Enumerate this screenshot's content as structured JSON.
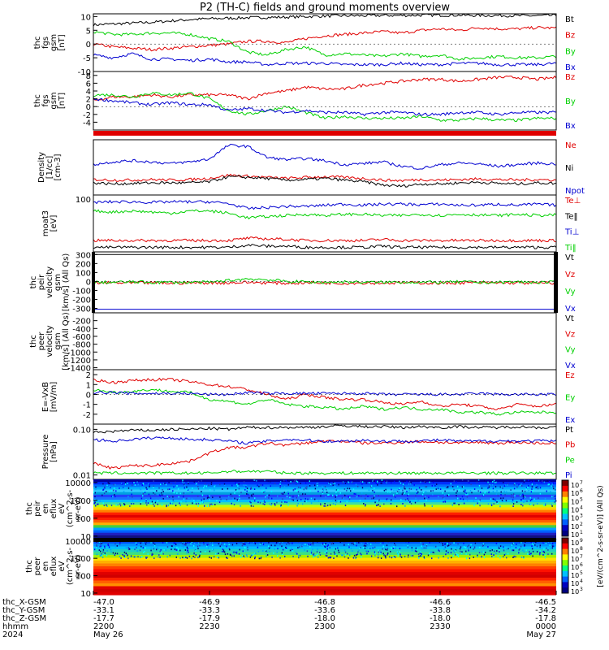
{
  "title": "P2 (TH-C) fields and ground moments overview",
  "colors": {
    "black": "#000000",
    "red": "#e00000",
    "green": "#00d000",
    "blue": "#0000d0"
  },
  "chart_data": [
    {
      "type": "line",
      "ylabel": [
        "thc",
        "fgs",
        "gsm",
        "[nT]"
      ],
      "ylim": [
        -10,
        11
      ],
      "yticks": [
        "10",
        "5",
        "0",
        "-5",
        "-10"
      ],
      "ytick_values": [
        10,
        5,
        0,
        -5,
        -10
      ],
      "legend_placement": "right",
      "series": [
        {
          "name": "Bt",
          "color": "black",
          "values": [
            7,
            7.3,
            7.6,
            7.9,
            8.4,
            8.9,
            9.2,
            9.4,
            9.6,
            9.7,
            9.8,
            10,
            10.2,
            10.3,
            10.3,
            10.4,
            10.4,
            10.5,
            10.5,
            10.5,
            10.4,
            10.4,
            10.3,
            10.3,
            10.4
          ]
        },
        {
          "name": "Bz",
          "color": "red",
          "values": [
            0,
            -1,
            -1.5,
            -2,
            -1.5,
            -1,
            -0.5,
            0,
            1,
            1,
            0.5,
            2,
            3,
            3.5,
            4,
            4.5,
            4,
            5,
            5.5,
            5,
            6,
            5.5,
            5.5,
            6,
            5.8
          ]
        },
        {
          "name": "By",
          "color": "green",
          "values": [
            4.5,
            3.5,
            3.5,
            4,
            4,
            3.5,
            2,
            1,
            -3,
            -4,
            -2,
            -1,
            -4,
            -3.5,
            -4,
            -4.5,
            -3.5,
            -4.5,
            -4,
            -5.5,
            -5,
            -4.5,
            -5,
            -5,
            -4.5
          ]
        },
        {
          "name": "Bx",
          "color": "blue",
          "values": [
            -4,
            -5,
            -3.5,
            -5.5,
            -5.5,
            -6,
            -5.5,
            -6.5,
            -6.5,
            -7.5,
            -7,
            -7,
            -7,
            -7.5,
            -7.5,
            -7.5,
            -7,
            -7.5,
            -7.5,
            -7,
            -7,
            -7.5,
            -7.5,
            -7.5,
            -7
          ]
        }
      ]
    },
    {
      "type": "line",
      "ylabel": [
        "thc",
        "fgs",
        "gsm",
        "[nT]"
      ],
      "ylim": [
        -6,
        9
      ],
      "yticks": [
        "8",
        "6",
        "4",
        "2",
        "0",
        "-2",
        "-4"
      ],
      "ytick_values": [
        8,
        6,
        4,
        2,
        0,
        -2,
        -4
      ],
      "legend_placement": "right",
      "series": [
        {
          "name": "Bz",
          "color": "red",
          "values": [
            1.5,
            2.5,
            2.5,
            3,
            2.5,
            3,
            3,
            3,
            2,
            3.5,
            4,
            5,
            4.5,
            4.5,
            5.5,
            6,
            6.5,
            7,
            7,
            6.5,
            7,
            7.5,
            7.5,
            7,
            7.5
          ]
        },
        {
          "name": "By",
          "color": "green",
          "values": [
            3,
            3,
            2.5,
            3.5,
            3,
            3.5,
            2,
            -1,
            -2,
            -1,
            0,
            -1.5,
            -3,
            -2.5,
            -3,
            -3,
            -3,
            -2.5,
            -3.5,
            -3.5,
            -3,
            -3.5,
            -3.5,
            -3,
            -3
          ]
        },
        {
          "name": "Bx",
          "color": "blue",
          "values": [
            2,
            1.5,
            1,
            0.5,
            1,
            0.5,
            0.5,
            -1,
            -0.5,
            -1,
            -1.5,
            -1,
            -1.5,
            -1.5,
            -2,
            -1.5,
            -1.5,
            -2,
            -2,
            -1.5,
            -1.5,
            -2,
            -1.5,
            -1.5,
            -1.5
          ]
        }
      ]
    },
    {
      "type": "line",
      "ylabel": [
        "Density",
        "[1/cc]",
        "[cm-3]"
      ],
      "ylim": [
        0,
        1
      ],
      "yticks": [],
      "legend_placement": "right",
      "series": [
        {
          "name": "Ne",
          "color": "red",
          "values": [
            0.28,
            0.27,
            0.27,
            0.28,
            0.27,
            0.28,
            0.3,
            0.36,
            0.34,
            0.32,
            0.3,
            0.32,
            0.33,
            0.32,
            0.3,
            0.27,
            0.26,
            0.28,
            0.27,
            0.28,
            0.29,
            0.28,
            0.27,
            0.28,
            0.27
          ]
        },
        {
          "name": "Ni",
          "color": "black",
          "values": [
            0.22,
            0.2,
            0.21,
            0.22,
            0.22,
            0.22,
            0.24,
            0.33,
            0.32,
            0.3,
            0.27,
            0.28,
            0.3,
            0.27,
            0.24,
            0.18,
            0.16,
            0.2,
            0.2,
            0.22,
            0.23,
            0.21,
            0.2,
            0.22,
            0.21
          ]
        },
        {
          "name": "Npot",
          "color": "blue",
          "values": [
            0.55,
            0.6,
            0.62,
            0.6,
            0.57,
            0.6,
            0.65,
            0.9,
            0.88,
            0.68,
            0.64,
            0.66,
            0.62,
            0.55,
            0.57,
            0.6,
            0.52,
            0.48,
            0.55,
            0.58,
            0.56,
            0.52,
            0.55,
            0.58,
            0.56
          ]
        }
      ]
    },
    {
      "type": "line",
      "ylabel": [
        "moat3",
        "[eV]"
      ],
      "ylim": [
        0,
        1
      ],
      "yticks": [
        "100"
      ],
      "legend_placement": "right",
      "series": [
        {
          "name": "Te⊥",
          "color": "red",
          "values": [
            0.2,
            0.2,
            0.2,
            0.2,
            0.2,
            0.2,
            0.2,
            0.2,
            0.24,
            0.23,
            0.22,
            0.2,
            0.2,
            0.2,
            0.2,
            0.22,
            0.2,
            0.2,
            0.2,
            0.2,
            0.2,
            0.2,
            0.2,
            0.2,
            0.2
          ]
        },
        {
          "name": "Te‖",
          "color": "black",
          "values": [
            0.08,
            0.08,
            0.08,
            0.08,
            0.08,
            0.08,
            0.08,
            0.08,
            0.12,
            0.1,
            0.1,
            0.08,
            0.08,
            0.08,
            0.08,
            0.1,
            0.08,
            0.08,
            0.08,
            0.08,
            0.08,
            0.08,
            0.08,
            0.08,
            0.08
          ]
        },
        {
          "name": "Ti⊥",
          "color": "blue",
          "values": [
            0.87,
            0.88,
            0.88,
            0.87,
            0.88,
            0.88,
            0.88,
            0.85,
            0.76,
            0.78,
            0.8,
            0.8,
            0.82,
            0.84,
            0.82,
            0.84,
            0.84,
            0.83,
            0.84,
            0.82,
            0.82,
            0.84,
            0.82,
            0.84,
            0.82
          ]
        },
        {
          "name": "Ti‖",
          "color": "green",
          "values": [
            0.72,
            0.7,
            0.72,
            0.7,
            0.68,
            0.72,
            0.72,
            0.68,
            0.6,
            0.62,
            0.64,
            0.66,
            0.64,
            0.66,
            0.66,
            0.64,
            0.64,
            0.66,
            0.64,
            0.66,
            0.65,
            0.64,
            0.66,
            0.64,
            0.65
          ]
        }
      ]
    },
    {
      "type": "line",
      "ylabel": [
        "thc",
        "peir",
        "velocity",
        "gsm",
        "[km/s] (All Qs)"
      ],
      "ylim": [
        -350,
        330
      ],
      "yticks": [
        "300",
        "200",
        "100",
        "0",
        "-100",
        "-200",
        "-300"
      ],
      "ytick_values": [
        300,
        200,
        100,
        0,
        -100,
        -200,
        -300
      ],
      "legend_placement": "right",
      "series": [
        {
          "name": "Vt",
          "color": "black",
          "values": [
            300,
            300,
            300,
            300,
            300,
            300,
            300,
            300,
            300,
            300,
            300,
            300,
            300,
            300,
            300,
            300,
            300,
            300,
            300,
            300,
            300,
            300,
            300,
            300,
            300
          ]
        },
        {
          "name": "Vz",
          "color": "red",
          "values": [
            -20,
            -15,
            -18,
            -15,
            -20,
            -15,
            -15,
            -15,
            -10,
            -15,
            -20,
            -15,
            -15,
            -20,
            -15,
            -18,
            -15,
            -15,
            -20,
            -15,
            -15,
            -18,
            -15,
            -20,
            -15
          ]
        },
        {
          "name": "Vy",
          "color": "green",
          "values": [
            -10,
            -10,
            -5,
            -10,
            -10,
            -10,
            -10,
            10,
            30,
            20,
            0,
            -5,
            -10,
            -5,
            -10,
            -10,
            -5,
            -10,
            -10,
            -5,
            -10,
            -10,
            -5,
            -10,
            -10
          ]
        },
        {
          "name": "Vx",
          "color": "blue",
          "values": [
            -310,
            -310,
            -310,
            -310,
            -310,
            -310,
            -310,
            -310,
            -310,
            -310,
            -310,
            -310,
            -310,
            -310,
            -310,
            -310,
            -310,
            -310,
            -310,
            -310,
            -310,
            -310,
            -310,
            -310,
            -310
          ]
        }
      ]
    },
    {
      "type": "line",
      "ylabel": [
        "thc",
        "peer",
        "velocity",
        "gsm",
        "[km/s] (All Qs)"
      ],
      "ylim": [
        -1450,
        0
      ],
      "yticks": [
        "-200",
        "-400",
        "-600",
        "-800",
        "-1000",
        "-1200",
        "-1400"
      ],
      "ytick_values": [
        -200,
        -400,
        -600,
        -800,
        -1000,
        -1200,
        -1400
      ],
      "legend_placement": "right",
      "series": [
        {
          "name": "Vt",
          "color": "black",
          "values": []
        },
        {
          "name": "Vz",
          "color": "red",
          "values": []
        },
        {
          "name": "Vy",
          "color": "green",
          "values": []
        },
        {
          "name": "Vx",
          "color": "blue",
          "values": []
        }
      ]
    },
    {
      "type": "line",
      "ylabel": [
        "E=-VxB",
        "[mV/m]"
      ],
      "ylim": [
        -3,
        2.5
      ],
      "yticks": [
        "2",
        "1",
        "0",
        "-1",
        "-2"
      ],
      "ytick_values": [
        2,
        1,
        0,
        -1,
        -2
      ],
      "legend_placement": "right",
      "series": [
        {
          "name": "Ez",
          "color": "red",
          "values": [
            1.5,
            1.2,
            1.4,
            1.5,
            1.5,
            1.3,
            1,
            0.8,
            0.5,
            0,
            -0.5,
            0,
            -0.3,
            -0.5,
            -0.5,
            -0.8,
            -1,
            -0.7,
            -1.2,
            -1,
            -1.2,
            -1.5,
            -1,
            -1.2,
            -1
          ]
        },
        {
          "name": "Ey",
          "color": "green",
          "values": [
            0.5,
            0.2,
            0.3,
            0.5,
            0.3,
            0.2,
            -0.5,
            -0.7,
            -1,
            -0.5,
            -1,
            -1.2,
            -1.3,
            -1.5,
            -1.2,
            -1.5,
            -1.3,
            -1.5,
            -1.5,
            -1.8,
            -1.8,
            -2,
            -1.8,
            -1.8,
            -1.8
          ]
        },
        {
          "name": "Ex",
          "color": "blue",
          "values": [
            0.2,
            0.2,
            0.1,
            0.1,
            0.1,
            0.1,
            0,
            0,
            0.2,
            0.1,
            0.1,
            0.1,
            0.1,
            0.1,
            0.1,
            0,
            0,
            0,
            0,
            0,
            0.1,
            0,
            0,
            0,
            0
          ]
        }
      ]
    },
    {
      "type": "line",
      "ylabel": [
        "Pressure",
        "[nPa]"
      ],
      "ylim": [
        0.008,
        0.13
      ],
      "yscale": "log",
      "yticks": [
        "0.10",
        "0.01"
      ],
      "ytick_values": [
        0.1,
        0.01
      ],
      "legend_placement": "right",
      "series": [
        {
          "name": "Pt",
          "color": "black",
          "values": [
            0.085,
            0.09,
            0.095,
            0.095,
            0.1,
            0.1,
            0.105,
            0.1,
            0.11,
            0.11,
            0.11,
            0.11,
            0.115,
            0.12,
            0.115,
            0.115,
            0.11,
            0.115,
            0.11,
            0.115,
            0.11,
            0.11,
            0.115,
            0.11,
            0.11
          ]
        },
        {
          "name": "Pb",
          "color": "red",
          "values": [
            0.018,
            0.014,
            0.016,
            0.016,
            0.018,
            0.02,
            0.03,
            0.04,
            0.04,
            0.05,
            0.045,
            0.05,
            0.055,
            0.055,
            0.05,
            0.05,
            0.052,
            0.054,
            0.052,
            0.05,
            0.052,
            0.05,
            0.052,
            0.05,
            0.05
          ]
        },
        {
          "name": "Pe",
          "color": "green",
          "values": [
            0.011,
            0.011,
            0.011,
            0.011,
            0.011,
            0.011,
            0.011,
            0.012,
            0.012,
            0.012,
            0.011,
            0.011,
            0.011,
            0.011,
            0.011,
            0.011,
            0.011,
            0.011,
            0.011,
            0.011,
            0.011,
            0.011,
            0.011,
            0.011,
            0.011
          ]
        },
        {
          "name": "Pi",
          "color": "blue",
          "values": [
            0.06,
            0.055,
            0.06,
            0.065,
            0.065,
            0.06,
            0.06,
            0.055,
            0.05,
            0.055,
            0.06,
            0.058,
            0.055,
            0.055,
            0.058,
            0.055,
            0.055,
            0.056,
            0.058,
            0.055,
            0.055,
            0.056,
            0.055,
            0.056,
            0.055
          ]
        }
      ]
    },
    {
      "type": "heatmap",
      "ylabel": [
        "thc",
        "peir",
        "en",
        "eflux",
        "eV",
        "(cm^2-s-",
        "sr-eV)"
      ],
      "yscale": "log",
      "yticks": [
        "10000",
        "1000",
        "100",
        "10"
      ],
      "ytick_values": [
        10000,
        1000,
        100,
        10
      ]
    },
    {
      "type": "heatmap",
      "ylabel": [
        "thc",
        "peer",
        "en",
        "eflux",
        "eV",
        "(cm^2-s-",
        "sr-eV)"
      ],
      "yscale": "log",
      "yticks": [
        "10000",
        "1000",
        "100",
        "10"
      ],
      "ytick_values": [
        10000,
        1000,
        100,
        10
      ]
    }
  ],
  "colorbar": {
    "label": "[eV/(cm^2-s-sr-eV)] (All Qs)",
    "upper_ticks": [
      "10",
      "10",
      "10",
      "10",
      "10",
      "10",
      "10"
    ],
    "upper_exps": [
      "7",
      "6",
      "5",
      "4",
      "3",
      "2",
      "1"
    ],
    "lower_ticks": [
      "10",
      "10",
      "10",
      "10",
      "10",
      "10",
      "10"
    ],
    "lower_exps": [
      "9",
      "8",
      "7",
      "6",
      "5",
      "4",
      "3"
    ]
  },
  "x_axis": {
    "rows": [
      {
        "label": "thc_X-GSM",
        "values": [
          "-47.0",
          "-46.9",
          "-46.8",
          "-46.6",
          "-46.5"
        ]
      },
      {
        "label": "thc_Y-GSM",
        "values": [
          "-33.1",
          "-33.3",
          "-33.6",
          "-33.8",
          "-34.2"
        ]
      },
      {
        "label": "thc_Z-GSM",
        "values": [
          "-17.7",
          "-17.9",
          "-18.0",
          "-18.0",
          "-17.8"
        ]
      },
      {
        "label": "hhmm",
        "values": [
          "2200",
          "2230",
          "2300",
          "2330",
          "0000"
        ]
      },
      {
        "label": "2024",
        "values": [
          "May 26",
          "",
          "",
          "",
          "May 27"
        ]
      }
    ]
  }
}
